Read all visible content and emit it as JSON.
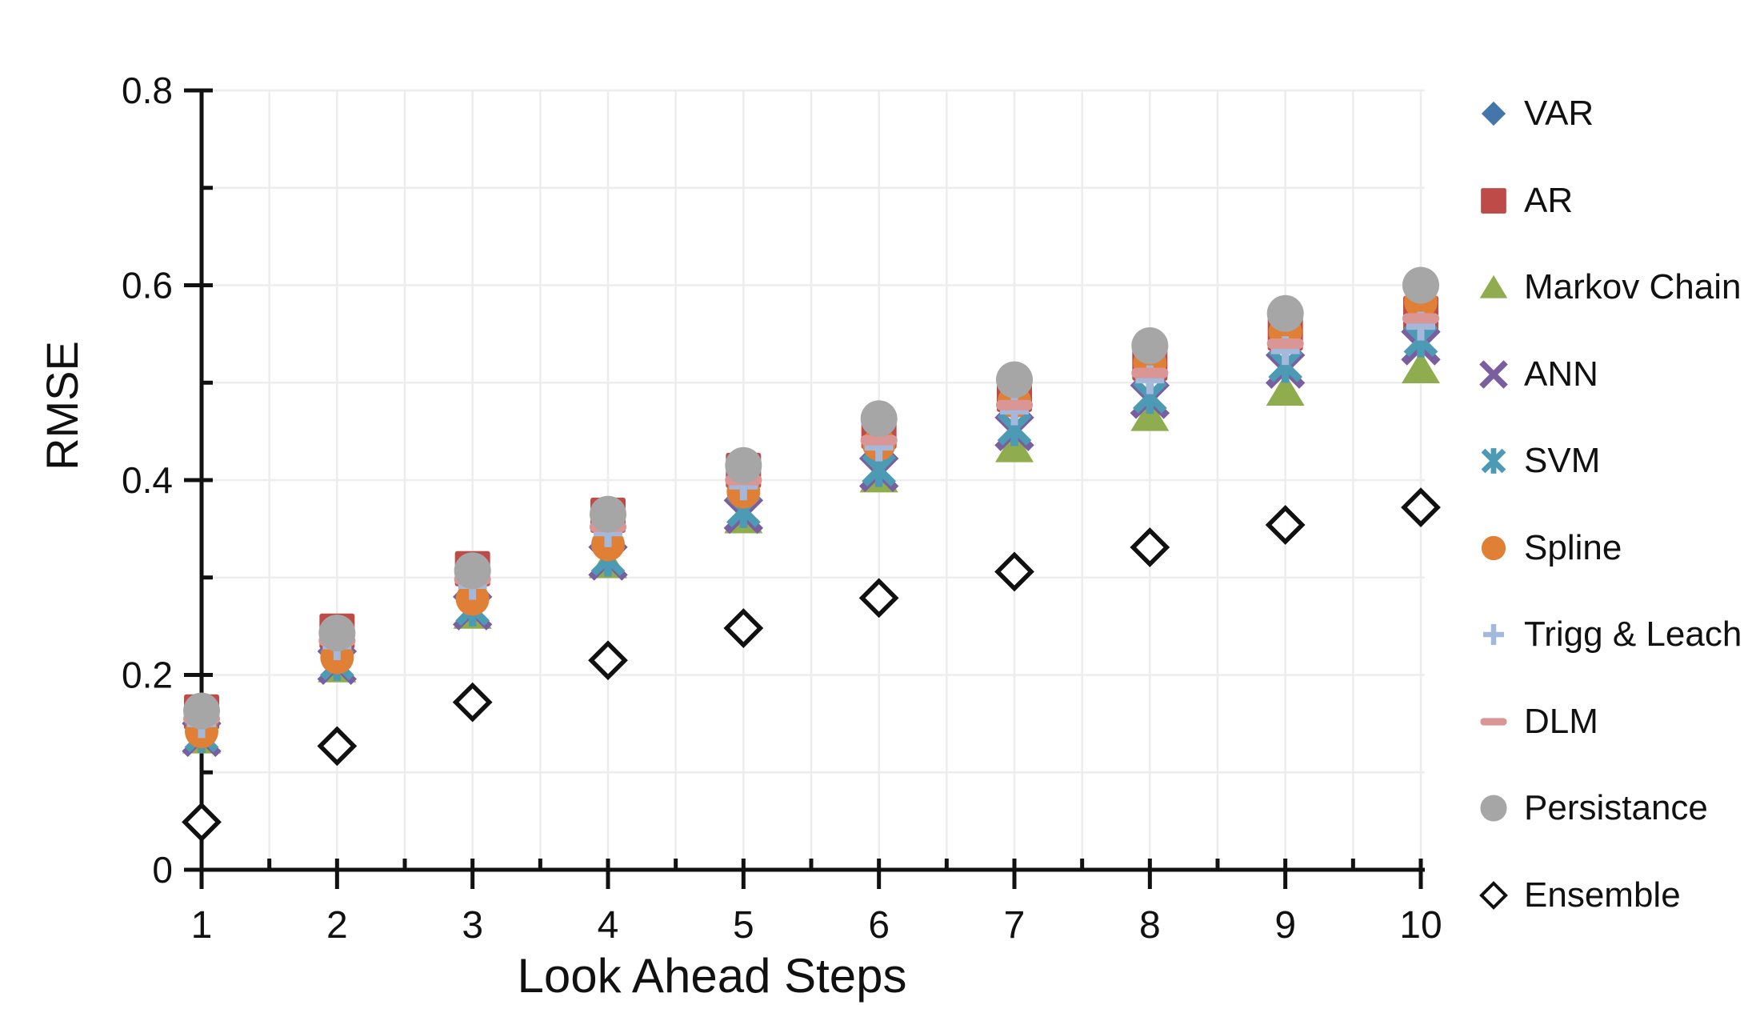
{
  "chart_data": {
    "type": "scatter",
    "title": "",
    "xlabel": "Look Ahead Steps",
    "ylabel": "RMSE",
    "x": [
      1,
      2,
      3,
      4,
      5,
      6,
      7,
      8,
      9,
      10
    ],
    "x_tick_labels": [
      "1",
      "2",
      "3",
      "4",
      "5",
      "6",
      "7",
      "8",
      "9",
      "10"
    ],
    "xlim": [
      1,
      10
    ],
    "x_minor_step": 0.5,
    "ylim": [
      0,
      0.8
    ],
    "y_tick_values": [
      0,
      0.2,
      0.4,
      0.6,
      0.8
    ],
    "y_tick_labels": [
      "0",
      "0.2",
      "0.4",
      "0.6",
      "0.8"
    ],
    "y_minor_step": 0.1,
    "grid": {
      "show": true,
      "color": "#ededed",
      "x_step": 0.5,
      "y_step": 0.1
    },
    "axis_color": "#111111",
    "legend_position": "right",
    "series": [
      {
        "name": "VAR",
        "marker": "diamond",
        "color": "#4476AC",
        "values": [
          0.158,
          0.24,
          0.303,
          0.358,
          0.404,
          0.446,
          0.484,
          0.516,
          0.547,
          0.568
        ]
      },
      {
        "name": "AR",
        "marker": "square",
        "color": "#BE4B47",
        "values": [
          0.162,
          0.245,
          0.309,
          0.364,
          0.41,
          0.45,
          0.488,
          0.52,
          0.551,
          0.571
        ]
      },
      {
        "name": "Markov Chain",
        "marker": "triangle",
        "color": "#8FAC4E",
        "values": [
          0.135,
          0.208,
          0.263,
          0.315,
          0.361,
          0.403,
          0.434,
          0.466,
          0.492,
          0.515
        ]
      },
      {
        "name": "ANN",
        "marker": "x-cross",
        "color": "#7A5FA0",
        "values": [
          0.136,
          0.21,
          0.266,
          0.317,
          0.365,
          0.408,
          0.45,
          0.483,
          0.514,
          0.538
        ]
      },
      {
        "name": "SVM",
        "marker": "x-line",
        "color": "#4D9AB5",
        "values": [
          0.138,
          0.212,
          0.268,
          0.319,
          0.369,
          0.411,
          0.453,
          0.486,
          0.518,
          0.544
        ]
      },
      {
        "name": "Spline",
        "marker": "circle",
        "color": "#E07F36",
        "values": [
          0.142,
          0.218,
          0.278,
          0.334,
          0.388,
          0.437,
          0.481,
          0.52,
          0.552,
          0.583
        ]
      },
      {
        "name": "Trigg & Leach",
        "marker": "plus",
        "color": "#A3B8DB",
        "values": [
          0.15,
          0.23,
          0.292,
          0.346,
          0.394,
          0.434,
          0.471,
          0.503,
          0.533,
          0.558
        ]
      },
      {
        "name": "DLM",
        "marker": "dash",
        "color": "#D99694",
        "values": [
          0.155,
          0.235,
          0.298,
          0.352,
          0.4,
          0.441,
          0.477,
          0.51,
          0.54,
          0.566
        ]
      },
      {
        "name": "Persistance",
        "marker": "circle-big",
        "color": "#A6A6A6",
        "values": [
          0.163,
          0.243,
          0.307,
          0.365,
          0.415,
          0.463,
          0.503,
          0.538,
          0.571,
          0.6
        ]
      },
      {
        "name": "Ensemble",
        "marker": "diamond-open",
        "color": "#111111",
        "values": [
          0.049,
          0.127,
          0.172,
          0.215,
          0.248,
          0.279,
          0.306,
          0.331,
          0.354,
          0.372
        ]
      }
    ]
  }
}
